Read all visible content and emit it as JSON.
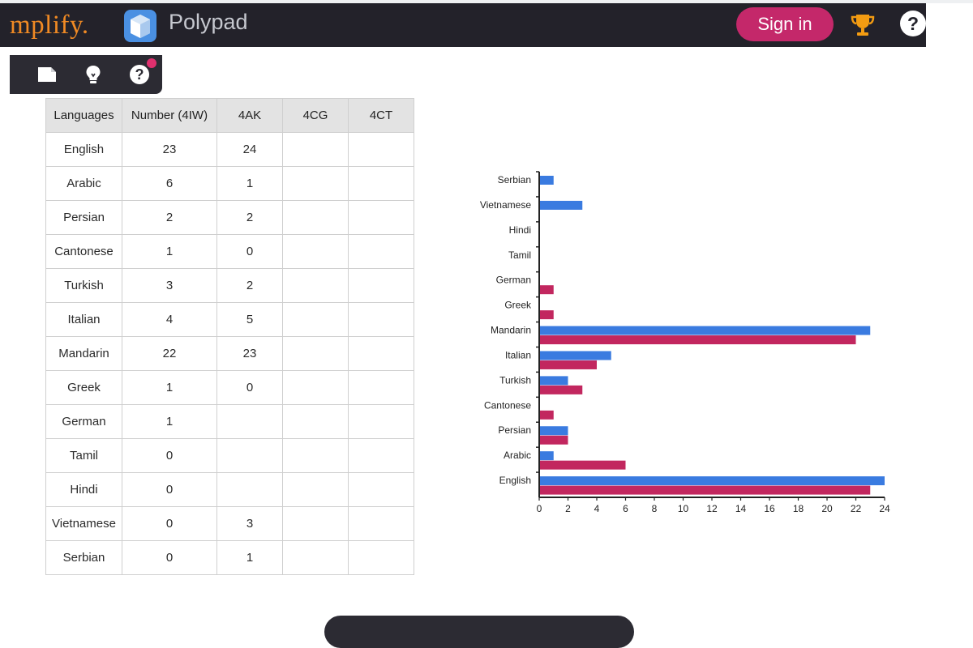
{
  "navbar": {
    "brand": "mplify.",
    "app_name": "Polypad",
    "sign_in": "Sign in",
    "help": "?",
    "icons": [
      "polypad-logo-icon",
      "trophy-icon",
      "help-icon"
    ],
    "colors": {
      "bar": "#23222a",
      "brand": "#f08a24",
      "sign_in": "#c4286a",
      "trophy": "#f39c12"
    }
  },
  "toolbar": {
    "icons": [
      "save-icon",
      "lightbulb-icon",
      "help-icon"
    ],
    "help": "?",
    "notification_dot_color": "#e0306e"
  },
  "table": {
    "headers": [
      "Languages",
      "Number (4IW)",
      "4AK",
      "4CG",
      "4CT"
    ],
    "rows": [
      [
        "English",
        "23",
        "24",
        "",
        ""
      ],
      [
        "Arabic",
        "6",
        "1",
        "",
        ""
      ],
      [
        "Persian",
        "2",
        "2",
        "",
        ""
      ],
      [
        "Cantonese",
        "1",
        "0",
        "",
        ""
      ],
      [
        "Turkish",
        "3",
        "2",
        "",
        ""
      ],
      [
        "Italian",
        "4",
        "5",
        "",
        ""
      ],
      [
        "Mandarin",
        "22",
        "23",
        "",
        ""
      ],
      [
        "Greek",
        "1",
        "0",
        "",
        ""
      ],
      [
        "German",
        "1",
        "",
        "",
        ""
      ],
      [
        "Tamil",
        "0",
        "",
        "",
        ""
      ],
      [
        "Hindi",
        "0",
        "",
        "",
        ""
      ],
      [
        "Vietnamese",
        "0",
        "3",
        "",
        ""
      ],
      [
        "Serbian",
        "0",
        "1",
        "",
        ""
      ]
    ]
  },
  "chart_data": {
    "type": "bar",
    "orientation": "horizontal",
    "categories": [
      "English",
      "Arabic",
      "Persian",
      "Cantonese",
      "Turkish",
      "Italian",
      "Mandarin",
      "Greek",
      "German",
      "Tamil",
      "Hindi",
      "Vietnamese",
      "Serbian"
    ],
    "series": [
      {
        "values": [
          24,
          1,
          2,
          0,
          2,
          5,
          23,
          0,
          null,
          null,
          null,
          3,
          1
        ],
        "color": "#3a7be0"
      },
      {
        "values": [
          23,
          6,
          2,
          1,
          3,
          4,
          22,
          1,
          1,
          0,
          0,
          0,
          0
        ],
        "color": "#c2275f"
      }
    ],
    "x_ticks": [
      0,
      2,
      4,
      6,
      8,
      10,
      12,
      14,
      16,
      18,
      20,
      22,
      24
    ],
    "xlim": [
      0,
      24
    ],
    "title": "",
    "xlabel": "",
    "ylabel": "",
    "grid": false,
    "legend": "none"
  }
}
